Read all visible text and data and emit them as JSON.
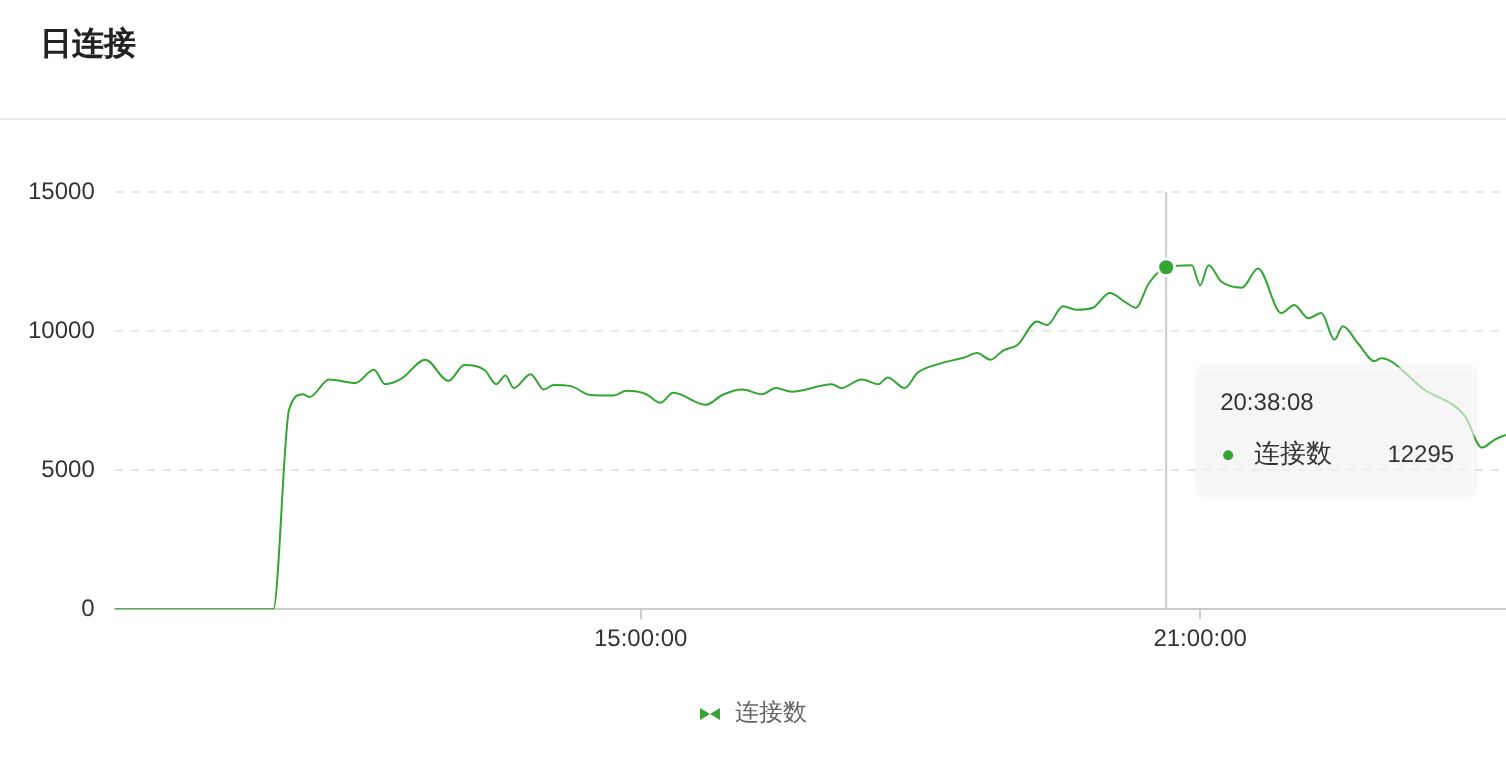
{
  "chart_data": {
    "type": "line",
    "title": "日连接",
    "xlim": [
      9.36,
      24.28
    ],
    "xticks": [
      {
        "value": 15,
        "label": "15:00:00"
      },
      {
        "value": 21,
        "label": "21:00:00"
      }
    ],
    "ylim": [
      0,
      15000
    ],
    "yticks": [
      0,
      5000,
      10000,
      15000
    ],
    "grid": "y",
    "legend": "bottom",
    "marker": "none",
    "line_style": "solid",
    "ref_lines": [
      {
        "axis": "x",
        "value": 20.6356,
        "label": null,
        "color": "#cccccc"
      }
    ],
    "annotations": [
      "20:38:08",
      "12295"
    ],
    "series": [
      {
        "name": "连接数",
        "color": "#33a532",
        "x": [
          9.36,
          11.06,
          11.23,
          11.38,
          11.45,
          11.66,
          11.94,
          12.14,
          12.26,
          12.44,
          12.69,
          12.94,
          13.11,
          13.33,
          13.45,
          13.55,
          13.64,
          13.82,
          13.96,
          14.07,
          14.25,
          14.46,
          14.71,
          14.85,
          15.06,
          15.21,
          15.35,
          15.7,
          15.88,
          16.09,
          16.3,
          16.45,
          16.62,
          17.05,
          17.15,
          17.37,
          17.55,
          17.65,
          17.83,
          17.97,
          18.19,
          18.47,
          18.61,
          18.75,
          18.89,
          19.04,
          19.25,
          19.36,
          19.53,
          19.67,
          19.85,
          20.03,
          20.21,
          20.31,
          20.45,
          20.6356,
          20.91,
          21.0,
          21.09,
          21.23,
          21.45,
          21.62,
          21.87,
          22.01,
          22.16,
          22.3,
          22.44,
          22.53,
          22.69,
          22.87,
          22.94,
          23.4,
          23.84,
          24.02,
          24.16,
          24.28
        ],
        "values": [
          0,
          0,
          7180,
          7730,
          7630,
          8260,
          8130,
          8610,
          8090,
          8300,
          8970,
          8210,
          8780,
          8590,
          8090,
          8400,
          7950,
          8450,
          7900,
          8060,
          8020,
          7700,
          7680,
          7850,
          7730,
          7420,
          7780,
          7350,
          7710,
          7900,
          7730,
          7950,
          7820,
          8090,
          7950,
          8260,
          8090,
          8330,
          7950,
          8500,
          8810,
          9050,
          9210,
          8970,
          9310,
          9500,
          10340,
          10220,
          10890,
          10770,
          10840,
          11370,
          11010,
          10840,
          11720,
          12295,
          12370,
          11650,
          12370,
          11770,
          11560,
          12250,
          10650,
          10940,
          10460,
          10650,
          9690,
          10170,
          9570,
          8920,
          9020,
          7900,
          6940,
          5810,
          6100,
          6270
        ]
      }
    ]
  }
}
